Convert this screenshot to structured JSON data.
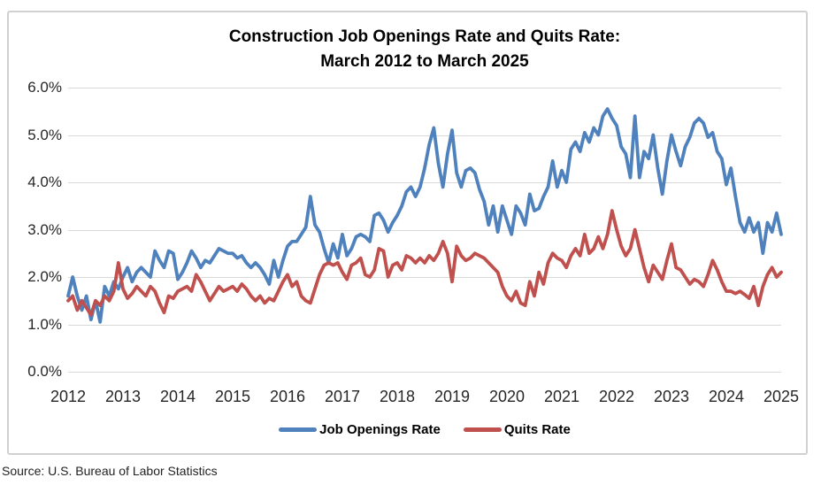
{
  "source_note": "Source: U.S. Bureau of Labor Statistics",
  "chart_data": {
    "type": "line",
    "title": "Construction Job Openings Rate and Quits Rate: March 2012 to March 2025",
    "title_line1": "Construction Job Openings Rate and Quits Rate:",
    "title_line2": "March 2012 to March 2025",
    "x_start": "March 2012",
    "x_end": "March 2025",
    "x_frequency": "monthly",
    "x_tick_labels": [
      "2012",
      "2013",
      "2014",
      "2015",
      "2016",
      "2017",
      "2018",
      "2019",
      "2020",
      "2021",
      "2022",
      "2023",
      "2024",
      "2025"
    ],
    "y_tick_labels": [
      "6.0%",
      "5.0%",
      "4.0%",
      "3.0%",
      "2.0%",
      "1.0%",
      "0.0%"
    ],
    "ylim": [
      0,
      6
    ],
    "grid": "horizontal",
    "gridline_color": "#d9d9d9",
    "legend_position": "bottom",
    "series": [
      {
        "name": "Job Openings Rate",
        "color": "#4F81BD",
        "values": [
          1.6,
          2.0,
          1.6,
          1.3,
          1.6,
          1.1,
          1.5,
          1.05,
          1.8,
          1.6,
          1.9,
          1.75,
          2.0,
          2.2,
          1.9,
          2.1,
          2.2,
          2.1,
          2.0,
          2.55,
          2.35,
          2.2,
          2.55,
          2.5,
          1.95,
          2.1,
          2.3,
          2.55,
          2.4,
          2.2,
          2.35,
          2.3,
          2.45,
          2.6,
          2.55,
          2.5,
          2.5,
          2.4,
          2.45,
          2.3,
          2.2,
          2.3,
          2.2,
          2.05,
          1.85,
          2.35,
          2.0,
          2.35,
          2.65,
          2.75,
          2.75,
          2.9,
          3.05,
          3.7,
          3.1,
          2.95,
          2.6,
          2.3,
          2.7,
          2.4,
          2.9,
          2.45,
          2.6,
          2.85,
          2.9,
          2.85,
          2.75,
          3.3,
          3.35,
          3.2,
          2.95,
          3.15,
          3.3,
          3.5,
          3.8,
          3.9,
          3.7,
          3.9,
          4.3,
          4.8,
          5.15,
          4.4,
          3.9,
          4.6,
          5.1,
          4.2,
          3.9,
          4.25,
          4.3,
          4.2,
          3.85,
          3.6,
          3.1,
          3.5,
          2.95,
          3.5,
          3.2,
          2.9,
          3.5,
          3.35,
          3.1,
          3.75,
          3.4,
          3.45,
          3.7,
          3.9,
          4.45,
          3.9,
          4.25,
          4.0,
          4.7,
          4.85,
          4.65,
          5.05,
          4.85,
          5.15,
          5.0,
          5.4,
          5.55,
          5.35,
          5.2,
          4.75,
          4.6,
          4.1,
          5.4,
          4.1,
          4.65,
          4.5,
          5.0,
          4.3,
          3.75,
          4.45,
          5.0,
          4.65,
          4.35,
          4.75,
          4.95,
          5.25,
          5.35,
          5.25,
          4.95,
          5.05,
          4.65,
          4.5,
          3.95,
          4.3,
          3.7,
          3.15,
          2.95,
          3.25,
          2.95,
          3.15,
          2.5,
          3.15,
          2.95,
          3.35,
          2.9
        ]
      },
      {
        "name": "Quits Rate",
        "color": "#C0504D",
        "values": [
          1.5,
          1.6,
          1.3,
          1.5,
          1.35,
          1.2,
          1.5,
          1.4,
          1.6,
          1.5,
          1.7,
          2.3,
          1.75,
          1.55,
          1.65,
          1.8,
          1.7,
          1.6,
          1.8,
          1.7,
          1.45,
          1.25,
          1.6,
          1.55,
          1.7,
          1.75,
          1.8,
          1.7,
          2.05,
          1.9,
          1.7,
          1.5,
          1.65,
          1.8,
          1.7,
          1.75,
          1.8,
          1.7,
          1.85,
          1.75,
          1.6,
          1.5,
          1.6,
          1.45,
          1.55,
          1.5,
          1.7,
          1.9,
          2.05,
          1.8,
          1.9,
          1.6,
          1.5,
          1.45,
          1.75,
          2.05,
          2.25,
          2.3,
          2.25,
          2.3,
          2.1,
          1.95,
          2.25,
          2.3,
          2.4,
          2.05,
          2.0,
          2.15,
          2.6,
          2.55,
          2.0,
          2.25,
          2.3,
          2.15,
          2.45,
          2.4,
          2.3,
          2.4,
          2.3,
          2.45,
          2.35,
          2.5,
          2.75,
          2.5,
          1.9,
          2.65,
          2.45,
          2.35,
          2.4,
          2.5,
          2.45,
          2.4,
          2.3,
          2.2,
          2.1,
          1.8,
          1.6,
          1.5,
          1.7,
          1.45,
          1.4,
          1.9,
          1.6,
          2.1,
          1.85,
          2.3,
          2.5,
          2.4,
          2.35,
          2.2,
          2.45,
          2.6,
          2.45,
          2.9,
          2.5,
          2.6,
          2.85,
          2.6,
          2.9,
          3.4,
          3.0,
          2.65,
          2.45,
          2.6,
          3.0,
          2.6,
          2.2,
          1.9,
          2.25,
          2.1,
          1.95,
          2.35,
          2.7,
          2.2,
          2.15,
          2.0,
          1.85,
          1.95,
          1.9,
          1.8,
          2.05,
          2.35,
          2.15,
          1.9,
          1.7,
          1.7,
          1.65,
          1.7,
          1.63,
          1.55,
          1.8,
          1.4,
          1.8,
          2.05,
          2.2,
          2.0,
          2.1
        ]
      }
    ]
  }
}
